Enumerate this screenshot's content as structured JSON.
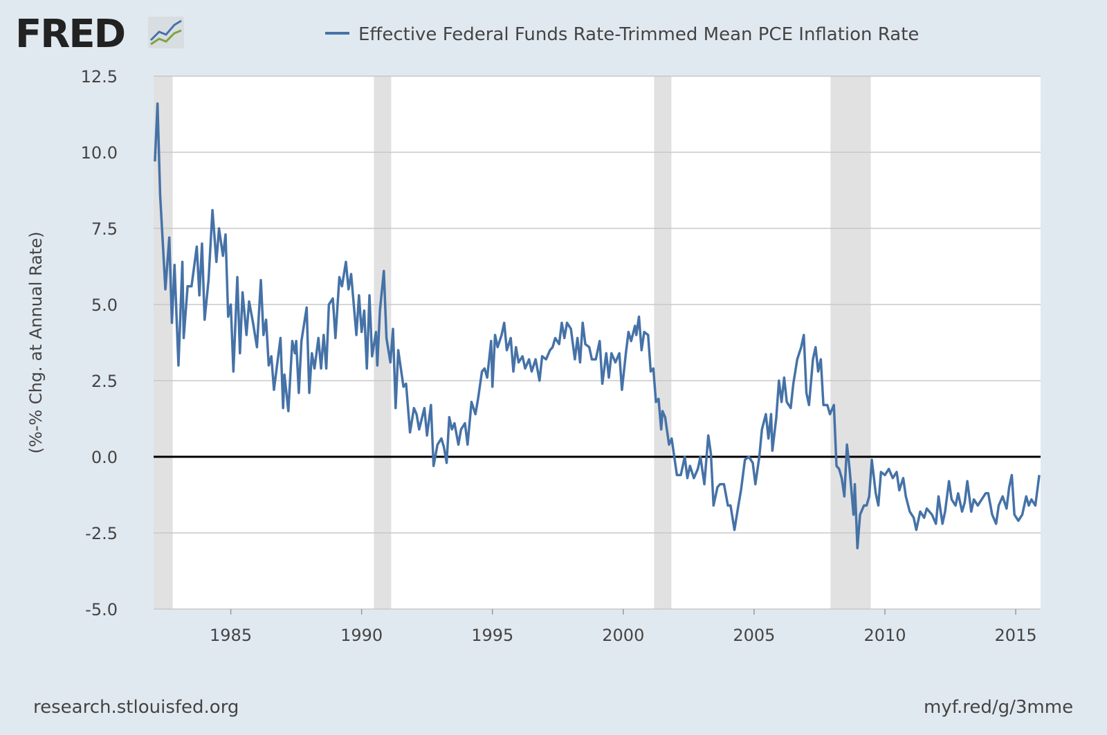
{
  "logo": "FRED",
  "chart_data": {
    "type": "line",
    "y_label": "(%-% Chg. at Annual Rate)",
    "xlim": [
      1982.05,
      2015.95
    ],
    "xticks": [
      1985,
      1990,
      1995,
      2000,
      2005,
      2010,
      2015
    ],
    "ylim": [
      -5,
      12.5
    ],
    "yticks": [
      {
        "value": -5,
        "label": "-5.0"
      },
      -2.5,
      {
        "value": 0,
        "label": "0.0"
      },
      2.5,
      {
        "value": 5,
        "label": "5.0"
      },
      7.5,
      {
        "value": 10,
        "label": "10.0"
      },
      12.5
    ],
    "grid": true,
    "recessions": [
      [
        1982.05,
        1982.78
      ],
      [
        1990.47,
        1991.13
      ],
      [
        2001.18,
        2001.84
      ],
      [
        2007.92,
        2009.46
      ]
    ],
    "x": [
      1982.1,
      1982.2,
      1982.3,
      1982.5,
      1982.65,
      1982.75,
      1982.85,
      1983.0,
      1983.15,
      1983.2,
      1983.35,
      1983.5,
      1983.7,
      1983.8,
      1983.9,
      1984.0,
      1984.15,
      1984.3,
      1984.45,
      1984.55,
      1984.7,
      1984.8,
      1984.9,
      1985.0,
      1985.1,
      1985.25,
      1985.35,
      1985.45,
      1985.6,
      1985.7,
      1985.85,
      1986.0,
      1986.15,
      1986.25,
      1986.35,
      1986.45,
      1986.55,
      1986.65,
      1986.9,
      1987.0,
      1987.05,
      1987.2,
      1987.35,
      1987.45,
      1987.5,
      1987.6,
      1987.7,
      1987.9,
      1988.0,
      1988.1,
      1988.2,
      1988.35,
      1988.45,
      1988.55,
      1988.65,
      1988.75,
      1988.9,
      1989.0,
      1989.15,
      1989.25,
      1989.4,
      1989.5,
      1989.6,
      1989.7,
      1989.8,
      1989.9,
      1990.0,
      1990.1,
      1990.2,
      1990.3,
      1990.4,
      1990.55,
      1990.6,
      1990.7,
      1990.85,
      1990.95,
      1991.1,
      1991.2,
      1991.3,
      1991.4,
      1991.6,
      1991.7,
      1991.85,
      1992.0,
      1992.1,
      1992.2,
      1992.4,
      1992.5,
      1992.65,
      1992.75,
      1992.9,
      1993.05,
      1993.15,
      1993.25,
      1993.35,
      1993.45,
      1993.55,
      1993.7,
      1993.8,
      1993.95,
      1994.05,
      1994.2,
      1994.35,
      1994.45,
      1994.6,
      1994.7,
      1994.8,
      1994.95,
      1995.0,
      1995.1,
      1995.2,
      1995.35,
      1995.45,
      1995.55,
      1995.7,
      1995.8,
      1995.9,
      1996.0,
      1996.15,
      1996.25,
      1996.4,
      1996.5,
      1996.65,
      1996.8,
      1996.9,
      1997.05,
      1997.2,
      1997.3,
      1997.4,
      1997.55,
      1997.65,
      1997.75,
      1997.85,
      1998.0,
      1998.15,
      1998.25,
      1998.35,
      1998.45,
      1998.55,
      1998.7,
      1998.8,
      1998.95,
      1999.1,
      1999.2,
      1999.35,
      1999.45,
      1999.55,
      1999.7,
      1999.85,
      1999.95,
      2000.1,
      2000.2,
      2000.3,
      2000.45,
      2000.5,
      2000.6,
      2000.7,
      2000.8,
      2000.95,
      2001.05,
      2001.15,
      2001.25,
      2001.35,
      2001.45,
      2001.5,
      2001.6,
      2001.75,
      2001.85,
      2001.95,
      2002.05,
      2002.2,
      2002.35,
      2002.45,
      2002.55,
      2002.7,
      2002.85,
      2002.95,
      2003.1,
      2003.25,
      2003.35,
      2003.45,
      2003.6,
      2003.7,
      2003.85,
      2004.0,
      2004.1,
      2004.25,
      2004.4,
      2004.5,
      2004.65,
      2004.8,
      2004.95,
      2005.05,
      2005.2,
      2005.3,
      2005.45,
      2005.55,
      2005.65,
      2005.7,
      2005.85,
      2005.95,
      2006.05,
      2006.15,
      2006.25,
      2006.4,
      2006.5,
      2006.65,
      2006.8,
      2006.9,
      2007.0,
      2007.1,
      2007.25,
      2007.35,
      2007.45,
      2007.55,
      2007.65,
      2007.8,
      2007.9,
      2008.05,
      2008.15,
      2008.25,
      2008.35,
      2008.45,
      2008.55,
      2008.65,
      2008.8,
      2008.85,
      2008.95,
      2009.05,
      2009.2,
      2009.3,
      2009.4,
      2009.5,
      2009.65,
      2009.75,
      2009.85,
      2010.0,
      2010.15,
      2010.3,
      2010.45,
      2010.55,
      2010.7,
      2010.8,
      2010.95,
      2011.1,
      2011.2,
      2011.35,
      2011.5,
      2011.6,
      2011.8,
      2011.95,
      2012.05,
      2012.2,
      2012.3,
      2012.45,
      2012.55,
      2012.7,
      2012.8,
      2012.95,
      2013.05,
      2013.15,
      2013.3,
      2013.4,
      2013.55,
      2013.7,
      2013.85,
      2013.95,
      2014.1,
      2014.25,
      2014.35,
      2014.5,
      2014.65,
      2014.75,
      2014.85,
      2014.95,
      2015.1,
      2015.25,
      2015.4,
      2015.5,
      2015.6,
      2015.75,
      2015.9
    ],
    "series": [
      {
        "name": "Effective Federal Funds Rate-Trimmed Mean PCE Inflation Rate",
        "color": "#4572a7",
        "values": [
          9.7,
          11.6,
          8.6,
          5.5,
          7.2,
          4.4,
          6.3,
          3.0,
          6.4,
          3.9,
          5.6,
          5.6,
          6.9,
          5.3,
          7.0,
          4.5,
          5.8,
          8.1,
          6.4,
          7.5,
          6.6,
          7.3,
          4.6,
          5.0,
          2.8,
          5.9,
          3.4,
          5.4,
          4.0,
          5.1,
          4.4,
          3.6,
          5.8,
          4.0,
          4.5,
          3.0,
          3.3,
          2.2,
          3.9,
          1.6,
          2.7,
          1.5,
          3.8,
          3.4,
          3.8,
          2.1,
          3.8,
          4.9,
          2.1,
          3.4,
          2.9,
          3.9,
          2.9,
          4.0,
          2.9,
          5.0,
          5.2,
          3.9,
          5.9,
          5.6,
          6.4,
          5.5,
          6.0,
          5.0,
          4.0,
          5.3,
          4.1,
          4.8,
          2.9,
          5.3,
          3.3,
          4.1,
          3.0,
          4.8,
          6.1,
          3.9,
          3.1,
          4.2,
          1.6,
          3.5,
          2.3,
          2.4,
          0.8,
          1.6,
          1.4,
          0.9,
          1.6,
          0.7,
          1.7,
          -0.3,
          0.4,
          0.6,
          0.3,
          -0.2,
          1.3,
          0.9,
          1.1,
          0.4,
          0.9,
          1.1,
          0.4,
          1.8,
          1.4,
          1.9,
          2.8,
          2.9,
          2.6,
          3.8,
          2.3,
          4.0,
          3.6,
          4.0,
          4.4,
          3.5,
          3.9,
          2.8,
          3.6,
          3.1,
          3.3,
          2.9,
          3.2,
          2.8,
          3.2,
          2.5,
          3.3,
          3.2,
          3.5,
          3.6,
          3.9,
          3.7,
          4.4,
          3.9,
          4.4,
          4.2,
          3.2,
          3.9,
          3.1,
          4.4,
          3.7,
          3.6,
          3.2,
          3.2,
          3.8,
          2.4,
          3.4,
          2.6,
          3.4,
          3.1,
          3.4,
          2.2,
          3.4,
          4.1,
          3.8,
          4.3,
          4.0,
          4.6,
          3.5,
          4.1,
          4.0,
          2.8,
          2.9,
          1.8,
          1.9,
          0.9,
          1.5,
          1.3,
          0.4,
          0.6,
          0.0,
          -0.6,
          -0.6,
          0.0,
          -0.7,
          -0.3,
          -0.7,
          -0.4,
          0.0,
          -0.9,
          0.7,
          0.1,
          -1.6,
          -1.0,
          -0.9,
          -0.9,
          -1.6,
          -1.6,
          -2.4,
          -1.6,
          -1.1,
          -0.1,
          0.0,
          -0.2,
          -0.9,
          0.0,
          0.9,
          1.4,
          0.6,
          1.4,
          0.2,
          1.3,
          2.5,
          1.8,
          2.6,
          1.8,
          1.6,
          2.4,
          3.2,
          3.6,
          4.0,
          2.1,
          1.7,
          3.2,
          3.6,
          2.8,
          3.2,
          1.7,
          1.7,
          1.4,
          1.7,
          -0.3,
          -0.4,
          -0.7,
          -1.3,
          0.4,
          -0.4,
          -1.9,
          -0.9,
          -3.0,
          -1.9,
          -1.6,
          -1.6,
          -1.3,
          -0.1,
          -1.2,
          -1.6,
          -0.5,
          -0.6,
          -0.4,
          -0.7,
          -0.5,
          -1.1,
          -0.7,
          -1.3,
          -1.8,
          -2.0,
          -2.4,
          -1.8,
          -2.0,
          -1.7,
          -1.9,
          -2.2,
          -1.3,
          -2.2,
          -1.8,
          -0.8,
          -1.4,
          -1.6,
          -1.2,
          -1.8,
          -1.5,
          -0.8,
          -1.8,
          -1.4,
          -1.6,
          -1.4,
          -1.2,
          -1.2,
          -1.9,
          -2.2,
          -1.6,
          -1.3,
          -1.7,
          -1.0,
          -0.6,
          -1.9,
          -2.1,
          -1.9,
          -1.3,
          -1.6,
          -1.4,
          -1.6,
          -0.6
        ]
      }
    ]
  },
  "footer": {
    "left": "research.stlouisfed.org",
    "right": "myf.red/g/3mme"
  }
}
